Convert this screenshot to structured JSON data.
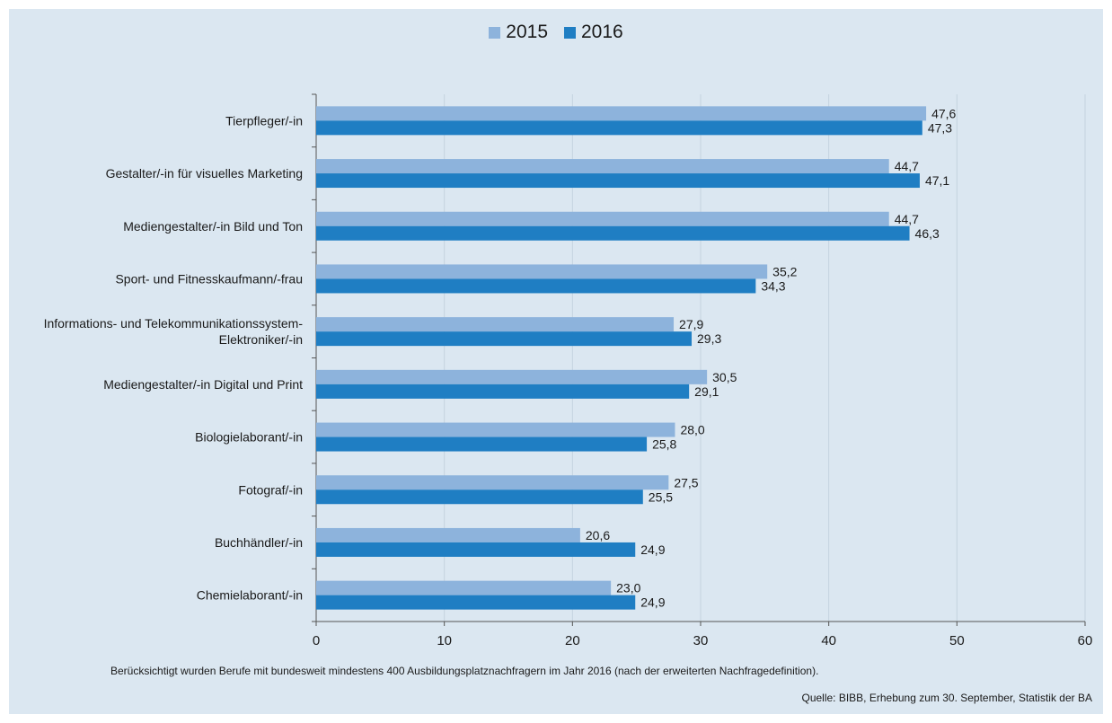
{
  "chart_data": {
    "type": "bar",
    "orientation": "horizontal",
    "categories": [
      "Tierpfleger/-in",
      "Gestalter/-in für visuelles Marketing",
      "Mediengestalter/-in Bild und Ton",
      "Sport- und Fitnesskaufmann/-frau",
      "Informations- und Telekommunikationssystem-\nElektroniker/-in",
      "Mediengestalter/-in Digital und Print",
      "Biologielaborant/-in",
      "Fotograf/-in",
      "Buchhändler/-in",
      "Chemielaborant/-in"
    ],
    "series": [
      {
        "name": "2015",
        "color": "#8db3dc",
        "values": [
          47.6,
          44.7,
          44.7,
          35.2,
          27.9,
          30.5,
          28.0,
          27.5,
          20.6,
          23.0
        ],
        "labels": [
          "47,6",
          "44,7",
          "44,7",
          "35,2",
          "27,9",
          "30,5",
          "28,0",
          "27,5",
          "20,6",
          "23,0"
        ]
      },
      {
        "name": "2016",
        "color": "#1f7ec3",
        "values": [
          47.3,
          47.1,
          46.3,
          34.3,
          29.3,
          29.1,
          25.8,
          25.5,
          24.9,
          24.9
        ],
        "labels": [
          "47,3",
          "47,1",
          "46,3",
          "34,3",
          "29,3",
          "29,1",
          "25,8",
          "25,5",
          "24,9",
          "24,9"
        ]
      }
    ],
    "xlim": [
      0,
      60
    ],
    "xticks": [
      0,
      10,
      20,
      30,
      40,
      50,
      60
    ],
    "grid": true,
    "legend_position": "top-center"
  },
  "footnote": "Berücksichtigt wurden Berufe mit bundesweit mindestens 400 Ausbildungsplatznachfragern im Jahr 2016 (nach der erweiterten Nachfragedefinition).",
  "source": "Quelle: BIBB,  Erhebung zum 30. September, Statistik der BA"
}
